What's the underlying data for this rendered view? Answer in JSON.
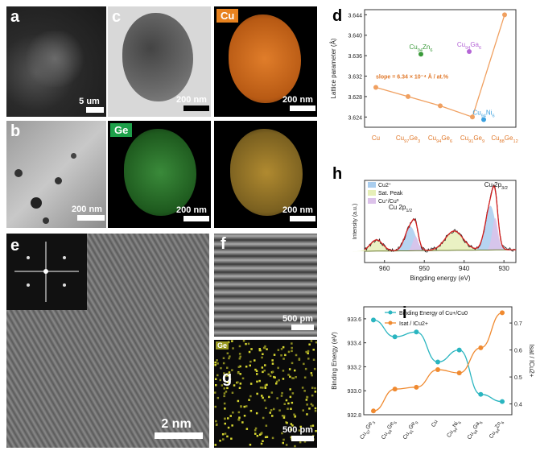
{
  "panels": {
    "a": {
      "label": "a",
      "scale": "5 um"
    },
    "b": {
      "label": "b",
      "scale": "200 nm"
    },
    "c": {
      "label": "c",
      "scale": "200 nm",
      "cu_scale": "200 nm",
      "cu_tag": "Cu",
      "merge_scale": "200 nm"
    },
    "ge": {
      "tag": "Ge",
      "scale": "200 nm"
    },
    "merge2": {
      "scale": "200 nm"
    },
    "e": {
      "label": "e",
      "scale": "2 nm"
    },
    "f": {
      "label": "f",
      "scale": "500 pm"
    },
    "g": {
      "label": "g",
      "scale": "500 pm",
      "tag": "Ge"
    }
  },
  "chart_d": {
    "label": "d",
    "type": "line",
    "ylabel": "Lattice parameter (Å)",
    "yticks": [
      "3.624",
      "3.628",
      "3.632",
      "3.636",
      "3.640",
      "3.644"
    ],
    "ylim": [
      3.622,
      3.645
    ],
    "categories": [
      "Cu",
      "Cu97Ge3",
      "Cu94Ge6",
      "Cu91Ge9",
      "Cu88Ge12"
    ],
    "values": [
      3.6298,
      3.628,
      3.6262,
      3.624,
      3.644
    ],
    "slope_text": "slope = 6.34 × 10⁻⁴ Å / at.%",
    "points": [
      {
        "name": "Cu94Zn6",
        "value": 3.6363,
        "color": "#3a9a3a"
      },
      {
        "name": "Cu94Ga6",
        "value": 3.6368,
        "color": "#b566d6"
      },
      {
        "name": "Cu94Ni6",
        "value": 3.6235,
        "color": "#3aa0df"
      }
    ],
    "colors": {
      "line": "#f0a060",
      "text": "#e0782a"
    }
  },
  "chart_h": {
    "label": "h",
    "type": "xps",
    "ylabel": "Intensity (a.u.)",
    "xlabel": "Bingding energy (eV)",
    "xticks": [
      "960",
      "950",
      "940",
      "930"
    ],
    "xlim": [
      965,
      927
    ],
    "peak_labels": {
      "cu2p12": "Cu 2p1/2",
      "cu2p32": "Cu 2p3/2"
    },
    "legend": [
      {
        "text": "Cu2+",
        "color": "#a9cdee"
      },
      {
        "text": "Sat. Peak",
        "color": "#e6efb8"
      },
      {
        "text": "Cu+/Cu0",
        "color": "#dcc2ea"
      }
    ],
    "colors": {
      "data": "#222222",
      "fit": "#d42020",
      "bg": "#6a7a30"
    }
  },
  "chart_i": {
    "label": "i",
    "type": "line",
    "categories": [
      "Cu97Ge3",
      "Cu94Ge6",
      "Cu91Ge9",
      "Cu",
      "Cu94Ni6",
      "Cu94Ga6",
      "Cu94Zn6"
    ],
    "left_ylabel": "Binding Energy (eV)",
    "right_ylabel": "Isat / ICu2+",
    "left_ticks": [
      "932.8",
      "933.0",
      "933.2",
      "933.4",
      "933.6"
    ],
    "right_ticks": [
      "0.4",
      "0.5",
      "0.6",
      "0.7"
    ],
    "left_ylim": [
      932.8,
      933.7
    ],
    "right_ylim": [
      0.36,
      0.76
    ],
    "series": [
      {
        "name": "Binding Energy of Cu+/Cu0",
        "axis": "left",
        "values": [
          933.59,
          933.45,
          933.49,
          933.24,
          933.34,
          932.97,
          932.91
        ],
        "color": "#2ab5c0"
      },
      {
        "name": "Isat / ICu2+",
        "axis": "right",
        "values": [
          0.374,
          0.455,
          0.462,
          0.527,
          0.515,
          0.608,
          0.738
        ],
        "color": "#f08a30"
      }
    ]
  }
}
